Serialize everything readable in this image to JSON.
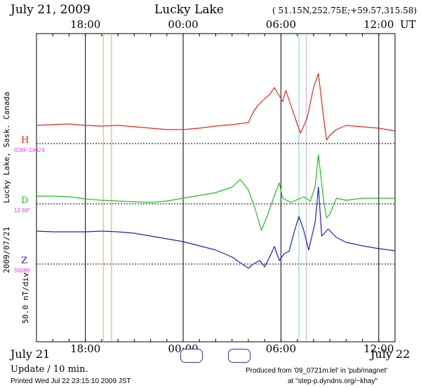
{
  "header": {
    "date": "July 21, 2009",
    "station": "Lucky Lake",
    "coords": "( 51.15N,252.75E;+59.57,315.58)",
    "ut_label": "UT"
  },
  "side": {
    "station_vertical": "Lucky Lake, Sask. Canada",
    "date_vertical": "2009/07/21",
    "scale_vertical": "50.0 nT/div"
  },
  "footer": {
    "left_date": "July 21",
    "right_date": "July 22",
    "update": "Update / 10 min.",
    "printed": "Printed Wed Jul 22 23:15:10 2009  JST",
    "produced": "Produced from '09_0721m.lel' in 'pub/magnet'",
    "site": "at \"step-p.dyndns.org/~khay\""
  },
  "colors": {
    "H": "#e8261e",
    "D": "#1fbf1f",
    "Z": "#1a20c8",
    "label_magenta": "#d93fd9",
    "button_border": "#2a35c8"
  },
  "chart_data": {
    "type": "line",
    "x_unit": "UT hour (from 15:00 July 21 to 13:00 July 22)",
    "xlim": [
      15,
      37
    ],
    "x_ticks": [
      {
        "x": 18,
        "label": "18:00"
      },
      {
        "x": 24,
        "label": "00:00"
      },
      {
        "x": 30,
        "label": "06:00"
      },
      {
        "x": 36,
        "label": "12:00"
      }
    ],
    "markers": [
      {
        "x": 19.1,
        "color": "#f5a05a"
      },
      {
        "x": 19.6,
        "color": "#f5a05a"
      },
      {
        "x": 31.1,
        "color": "#7fd0c8"
      },
      {
        "x": 31.55,
        "color": "#c0b0d8"
      }
    ],
    "series": [
      {
        "name": "H",
        "color": "#e8261e",
        "baseline_label": "ICRF-14624",
        "points": [
          [
            15,
            -26
          ],
          [
            16,
            -27
          ],
          [
            17,
            -28
          ],
          [
            18,
            -26
          ],
          [
            19,
            -25
          ],
          [
            20,
            -26
          ],
          [
            21,
            -24
          ],
          [
            22,
            -22
          ],
          [
            23,
            -20
          ],
          [
            24,
            -20
          ],
          [
            25,
            -22
          ],
          [
            26,
            -25
          ],
          [
            27,
            -27
          ],
          [
            28,
            -30
          ],
          [
            28.3,
            -45
          ],
          [
            28.6,
            -55
          ],
          [
            29,
            -64
          ],
          [
            29.3,
            -70
          ],
          [
            29.6,
            -80
          ],
          [
            29.9,
            -68
          ],
          [
            30.1,
            -60
          ],
          [
            30.3,
            -76
          ],
          [
            30.6,
            -55
          ],
          [
            31,
            -28
          ],
          [
            31.2,
            -15
          ],
          [
            31.6,
            -36
          ],
          [
            32,
            -80
          ],
          [
            32.3,
            -100
          ],
          [
            32.6,
            -40
          ],
          [
            32.8,
            -5
          ],
          [
            33,
            -12
          ],
          [
            33.4,
            -20
          ],
          [
            34,
            -26
          ],
          [
            35,
            -24
          ],
          [
            36,
            -22
          ],
          [
            37,
            -18
          ]
        ]
      },
      {
        "name": "D",
        "color": "#1fbf1f",
        "baseline_label": "12.68°",
        "points": [
          [
            15,
            -11
          ],
          [
            16,
            -11
          ],
          [
            17,
            -10
          ],
          [
            18,
            -7
          ],
          [
            19,
            -5
          ],
          [
            20,
            -4
          ],
          [
            21,
            -3
          ],
          [
            22,
            -2
          ],
          [
            23,
            -4
          ],
          [
            24,
            -8
          ],
          [
            25,
            -12
          ],
          [
            26,
            -16
          ],
          [
            27,
            -24
          ],
          [
            27.5,
            -35
          ],
          [
            28,
            -20
          ],
          [
            28.4,
            6
          ],
          [
            28.8,
            38
          ],
          [
            29.2,
            15
          ],
          [
            29.6,
            -12
          ],
          [
            29.9,
            -30
          ],
          [
            30.1,
            -8
          ],
          [
            30.6,
            -2
          ],
          [
            31,
            -6
          ],
          [
            31.4,
            -10
          ],
          [
            31.8,
            -4
          ],
          [
            32.1,
            -25
          ],
          [
            32.3,
            -70
          ],
          [
            32.6,
            -8
          ],
          [
            32.8,
            20
          ],
          [
            33,
            15
          ],
          [
            33.4,
            -8
          ],
          [
            34,
            -5
          ],
          [
            35,
            -8
          ],
          [
            36,
            -8
          ],
          [
            37,
            -8
          ]
        ]
      },
      {
        "name": "Z",
        "color": "#1a20c8",
        "baseline_label": "56089",
        "points": [
          [
            15,
            -47
          ],
          [
            16,
            -46
          ],
          [
            17,
            -46
          ],
          [
            18,
            -46
          ],
          [
            19,
            -47
          ],
          [
            20,
            -46
          ],
          [
            21,
            -44
          ],
          [
            22,
            -40
          ],
          [
            23,
            -36
          ],
          [
            24,
            -32
          ],
          [
            25,
            -26
          ],
          [
            26,
            -20
          ],
          [
            27,
            -10
          ],
          [
            28,
            6
          ],
          [
            28.3,
            0
          ],
          [
            28.7,
            -5
          ],
          [
            29,
            4
          ],
          [
            29.3,
            -10
          ],
          [
            29.6,
            -25
          ],
          [
            29.9,
            -5
          ],
          [
            30.2,
            -15
          ],
          [
            30.5,
            -18
          ],
          [
            30.8,
            -45
          ],
          [
            31.1,
            -68
          ],
          [
            31.4,
            -48
          ],
          [
            31.7,
            -20
          ],
          [
            32.1,
            -60
          ],
          [
            32.3,
            -110
          ],
          [
            32.5,
            -40
          ],
          [
            32.9,
            -50
          ],
          [
            33.4,
            -38
          ],
          [
            34,
            -31
          ],
          [
            35,
            -26
          ],
          [
            36,
            -22
          ],
          [
            37,
            -19
          ]
        ]
      }
    ]
  }
}
